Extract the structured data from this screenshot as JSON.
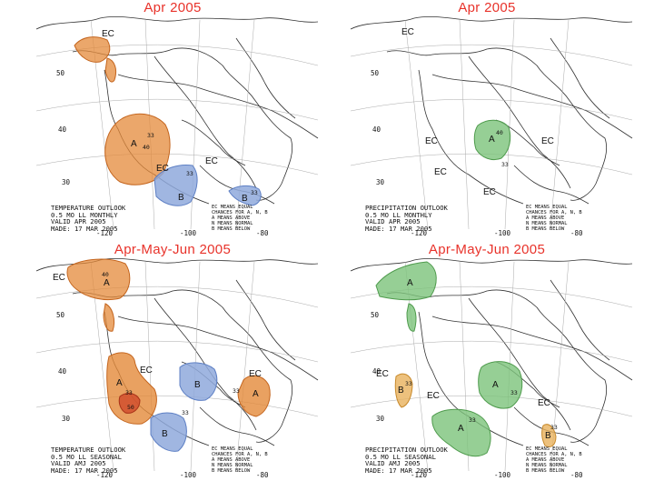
{
  "colors": {
    "above_temp": "#e48a3a",
    "above_temp_light": "#f0b77e",
    "above_temp_dark": "#cf4a2a",
    "below_temp": "#8fa9dc",
    "above_precip": "#7cc37a",
    "below_precip": "#e9b25c",
    "title": "#e8322a"
  },
  "panels": [
    {
      "id": "temp-apr",
      "title": "Apr 2005",
      "variable": "temperature",
      "legend_left": [
        "TEMPERATURE OUTLOOK",
        "0.5 MO LL MONTHLY",
        "VALID APR 2005",
        "MADE: 17 MAR 2005"
      ],
      "legend_right": [
        "EC MEANS EQUAL",
        "CHANCES FOR A, N, B",
        "A MEANS ABOVE",
        "N MEANS NORMAL",
        "B MEANS BELOW"
      ],
      "longitudes": [
        "-120",
        "-100",
        "-80"
      ],
      "latitudes": [
        "50",
        "40",
        "30"
      ],
      "labels": [
        "EC",
        "A",
        "EC",
        "EC",
        "B",
        "B"
      ],
      "contours": [
        "33",
        "40",
        "33",
        "33"
      ]
    },
    {
      "id": "precip-apr",
      "title": "Apr 2005",
      "variable": "precipitation",
      "legend_left": [
        "PRECIPITATION OUTLOOK",
        "0.5 MO LL MONTHLY",
        "VALID APR 2005",
        "MADE: 17 MAR 2005"
      ],
      "legend_right": [
        "EC MEANS EQUAL",
        "CHANCES FOR A, N, B",
        "A MEANS ABOVE",
        "N MEANS NORMAL",
        "B MEANS BELOW"
      ],
      "longitudes": [
        "-120",
        "-100",
        "-80"
      ],
      "latitudes": [
        "50",
        "40",
        "30"
      ],
      "labels": [
        "EC",
        "EC",
        "A",
        "EC",
        "EC",
        "EC"
      ],
      "contours": [
        "40",
        "33"
      ]
    },
    {
      "id": "temp-amj",
      "title": "Apr-May-Jun 2005",
      "variable": "temperature",
      "legend_left": [
        "TEMPERATURE OUTLOOK",
        "0.5 MO LL SEASONAL",
        "VALID AMJ 2005",
        "MADE: 17 MAR 2005"
      ],
      "legend_right": [
        "EC MEANS EQUAL",
        "CHANCES FOR A, N, B",
        "A MEANS ABOVE",
        "N MEANS NORMAL",
        "B MEANS BELOW"
      ],
      "longitudes": [
        "-120",
        "-100",
        "-80"
      ],
      "latitudes": [
        "50",
        "40",
        "30"
      ],
      "labels": [
        "EC",
        "A",
        "EC",
        "A",
        "B",
        "EC",
        "A",
        "B"
      ],
      "contours": [
        "40",
        "33",
        "50",
        "33",
        "33"
      ]
    },
    {
      "id": "precip-amj",
      "title": "Apr-May-Jun 2005",
      "variable": "precipitation",
      "legend_left": [
        "PRECIPITATION OUTLOOK",
        "0.5 MO LL SEASONAL",
        "VALID AMJ 2005",
        "MADE: 17 MAR 2005"
      ],
      "legend_right": [
        "EC MEANS EQUAL",
        "CHANCES FOR A, N, B",
        "A MEANS ABOVE",
        "N MEANS NORMAL",
        "B MEANS BELOW"
      ],
      "longitudes": [
        "-120",
        "-100",
        "-80"
      ],
      "latitudes": [
        "50",
        "40",
        "30"
      ],
      "labels": [
        "A",
        "EC",
        "B",
        "EC",
        "A",
        "A",
        "EC",
        "B"
      ],
      "contours": [
        "33",
        "33",
        "33",
        "33"
      ]
    }
  ]
}
